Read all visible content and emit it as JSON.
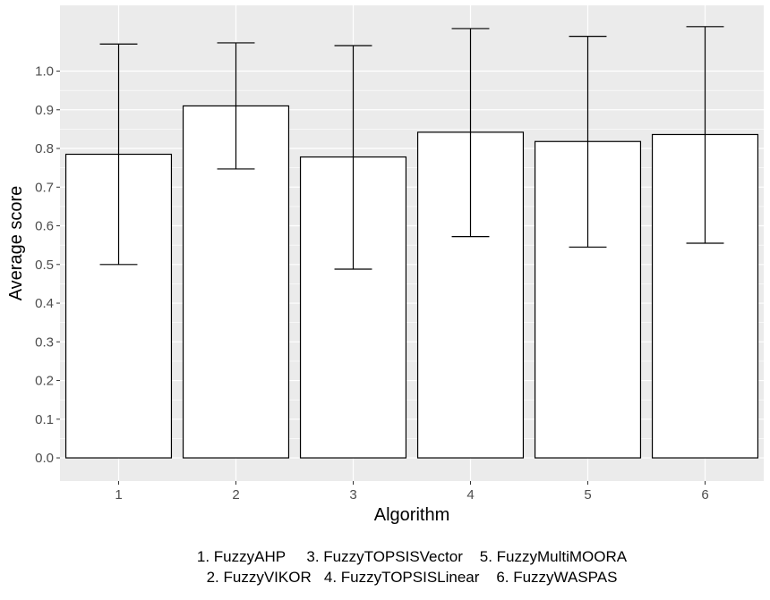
{
  "chart_data": {
    "type": "bar",
    "categories": [
      "1",
      "2",
      "3",
      "4",
      "5",
      "6"
    ],
    "values": [
      0.785,
      0.91,
      0.778,
      0.842,
      0.818,
      0.836
    ],
    "error_bars": {
      "lower": [
        0.5,
        0.747,
        0.488,
        0.572,
        0.545,
        0.555
      ],
      "upper": [
        1.07,
        1.073,
        1.066,
        1.11,
        1.09,
        1.115
      ]
    },
    "xlabel": "Algorithm",
    "ylabel": "Average score",
    "ylim": [
      -0.06,
      1.17
    ],
    "yticks": [
      "0.0",
      "0.1",
      "0.2",
      "0.3",
      "0.4",
      "0.5",
      "0.6",
      "0.7",
      "0.8",
      "0.9",
      "1.0"
    ],
    "grid": true,
    "colors": {
      "panel_background": "#EBEBEB",
      "grid": "#FFFFFF",
      "bar_fill": "#FFFFFF",
      "bar_outline": "#000000"
    },
    "caption": {
      "line1": "1. FuzzyAHP     3. FuzzyTOPSISVector    5. FuzzyMultiMOORA",
      "line2": "2. FuzzyVIKOR   4. FuzzyTOPSISLinear    6. FuzzyWASPAS"
    }
  }
}
